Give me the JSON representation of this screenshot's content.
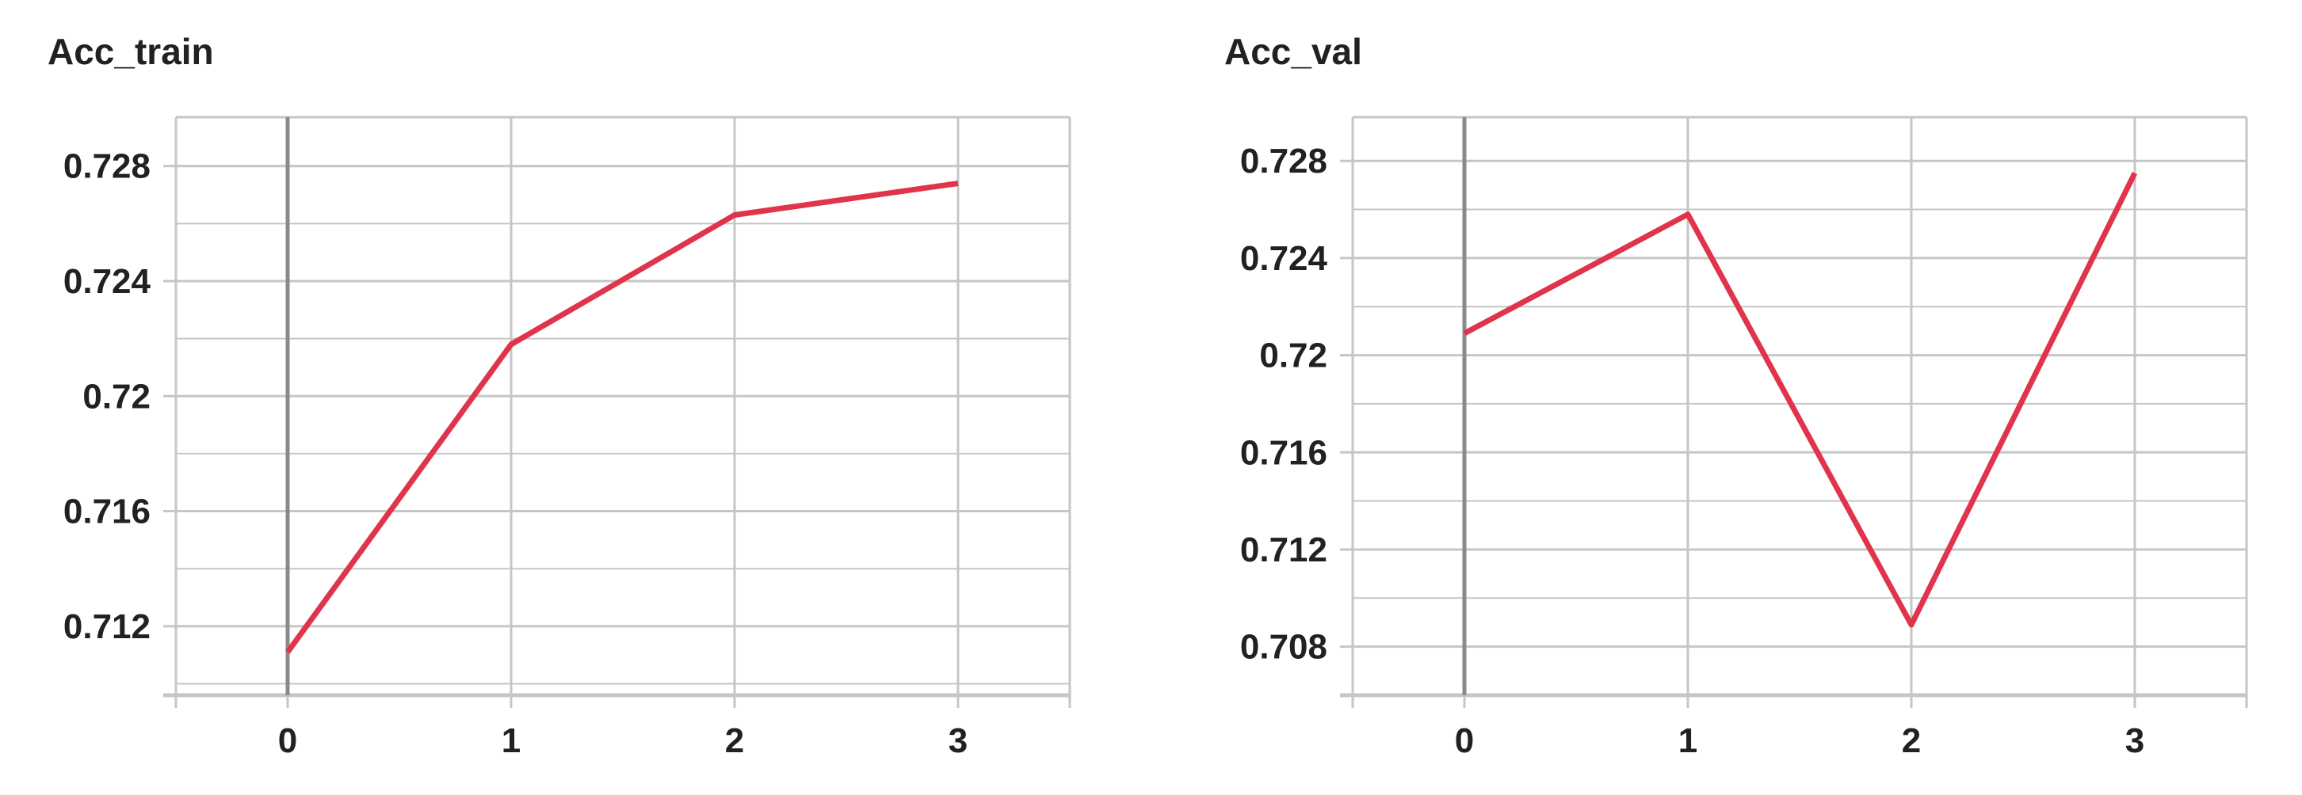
{
  "colors": {
    "line": "#e0344b",
    "grid": "#c6c6c6",
    "axis": "#9e9e9e",
    "zero_axis": "#8a8a8a",
    "text": "#212121"
  },
  "chart_data": [
    {
      "type": "line",
      "title": "Acc_train",
      "xlabel": "",
      "ylabel": "",
      "x": [
        0,
        1,
        2,
        3
      ],
      "xlim": [
        -0.5,
        3.5
      ],
      "ylim": [
        0.7096,
        0.7297
      ],
      "x_ticks": [
        "0",
        "1",
        "2",
        "3"
      ],
      "y_ticks": [
        "0.712",
        "0.716",
        "0.72",
        "0.724",
        "0.728"
      ],
      "y_tick_values": [
        0.712,
        0.716,
        0.72,
        0.724,
        0.728
      ],
      "grid": true,
      "series": [
        {
          "values": [
            0.7111,
            0.7218,
            0.7263,
            0.7274
          ]
        }
      ]
    },
    {
      "type": "line",
      "title": "Acc_val",
      "xlabel": "",
      "ylabel": "",
      "x": [
        0,
        1,
        2,
        3
      ],
      "xlim": [
        -0.5,
        3.5
      ],
      "ylim": [
        0.706,
        0.7298
      ],
      "x_ticks": [
        "0",
        "1",
        "2",
        "3"
      ],
      "y_ticks": [
        "0.708",
        "0.712",
        "0.716",
        "0.72",
        "0.724",
        "0.728"
      ],
      "y_tick_values": [
        0.708,
        0.712,
        0.716,
        0.72,
        0.724,
        0.728
      ],
      "grid": true,
      "series": [
        {
          "values": [
            0.7209,
            0.7258,
            0.7089,
            0.7275
          ]
        }
      ]
    }
  ]
}
